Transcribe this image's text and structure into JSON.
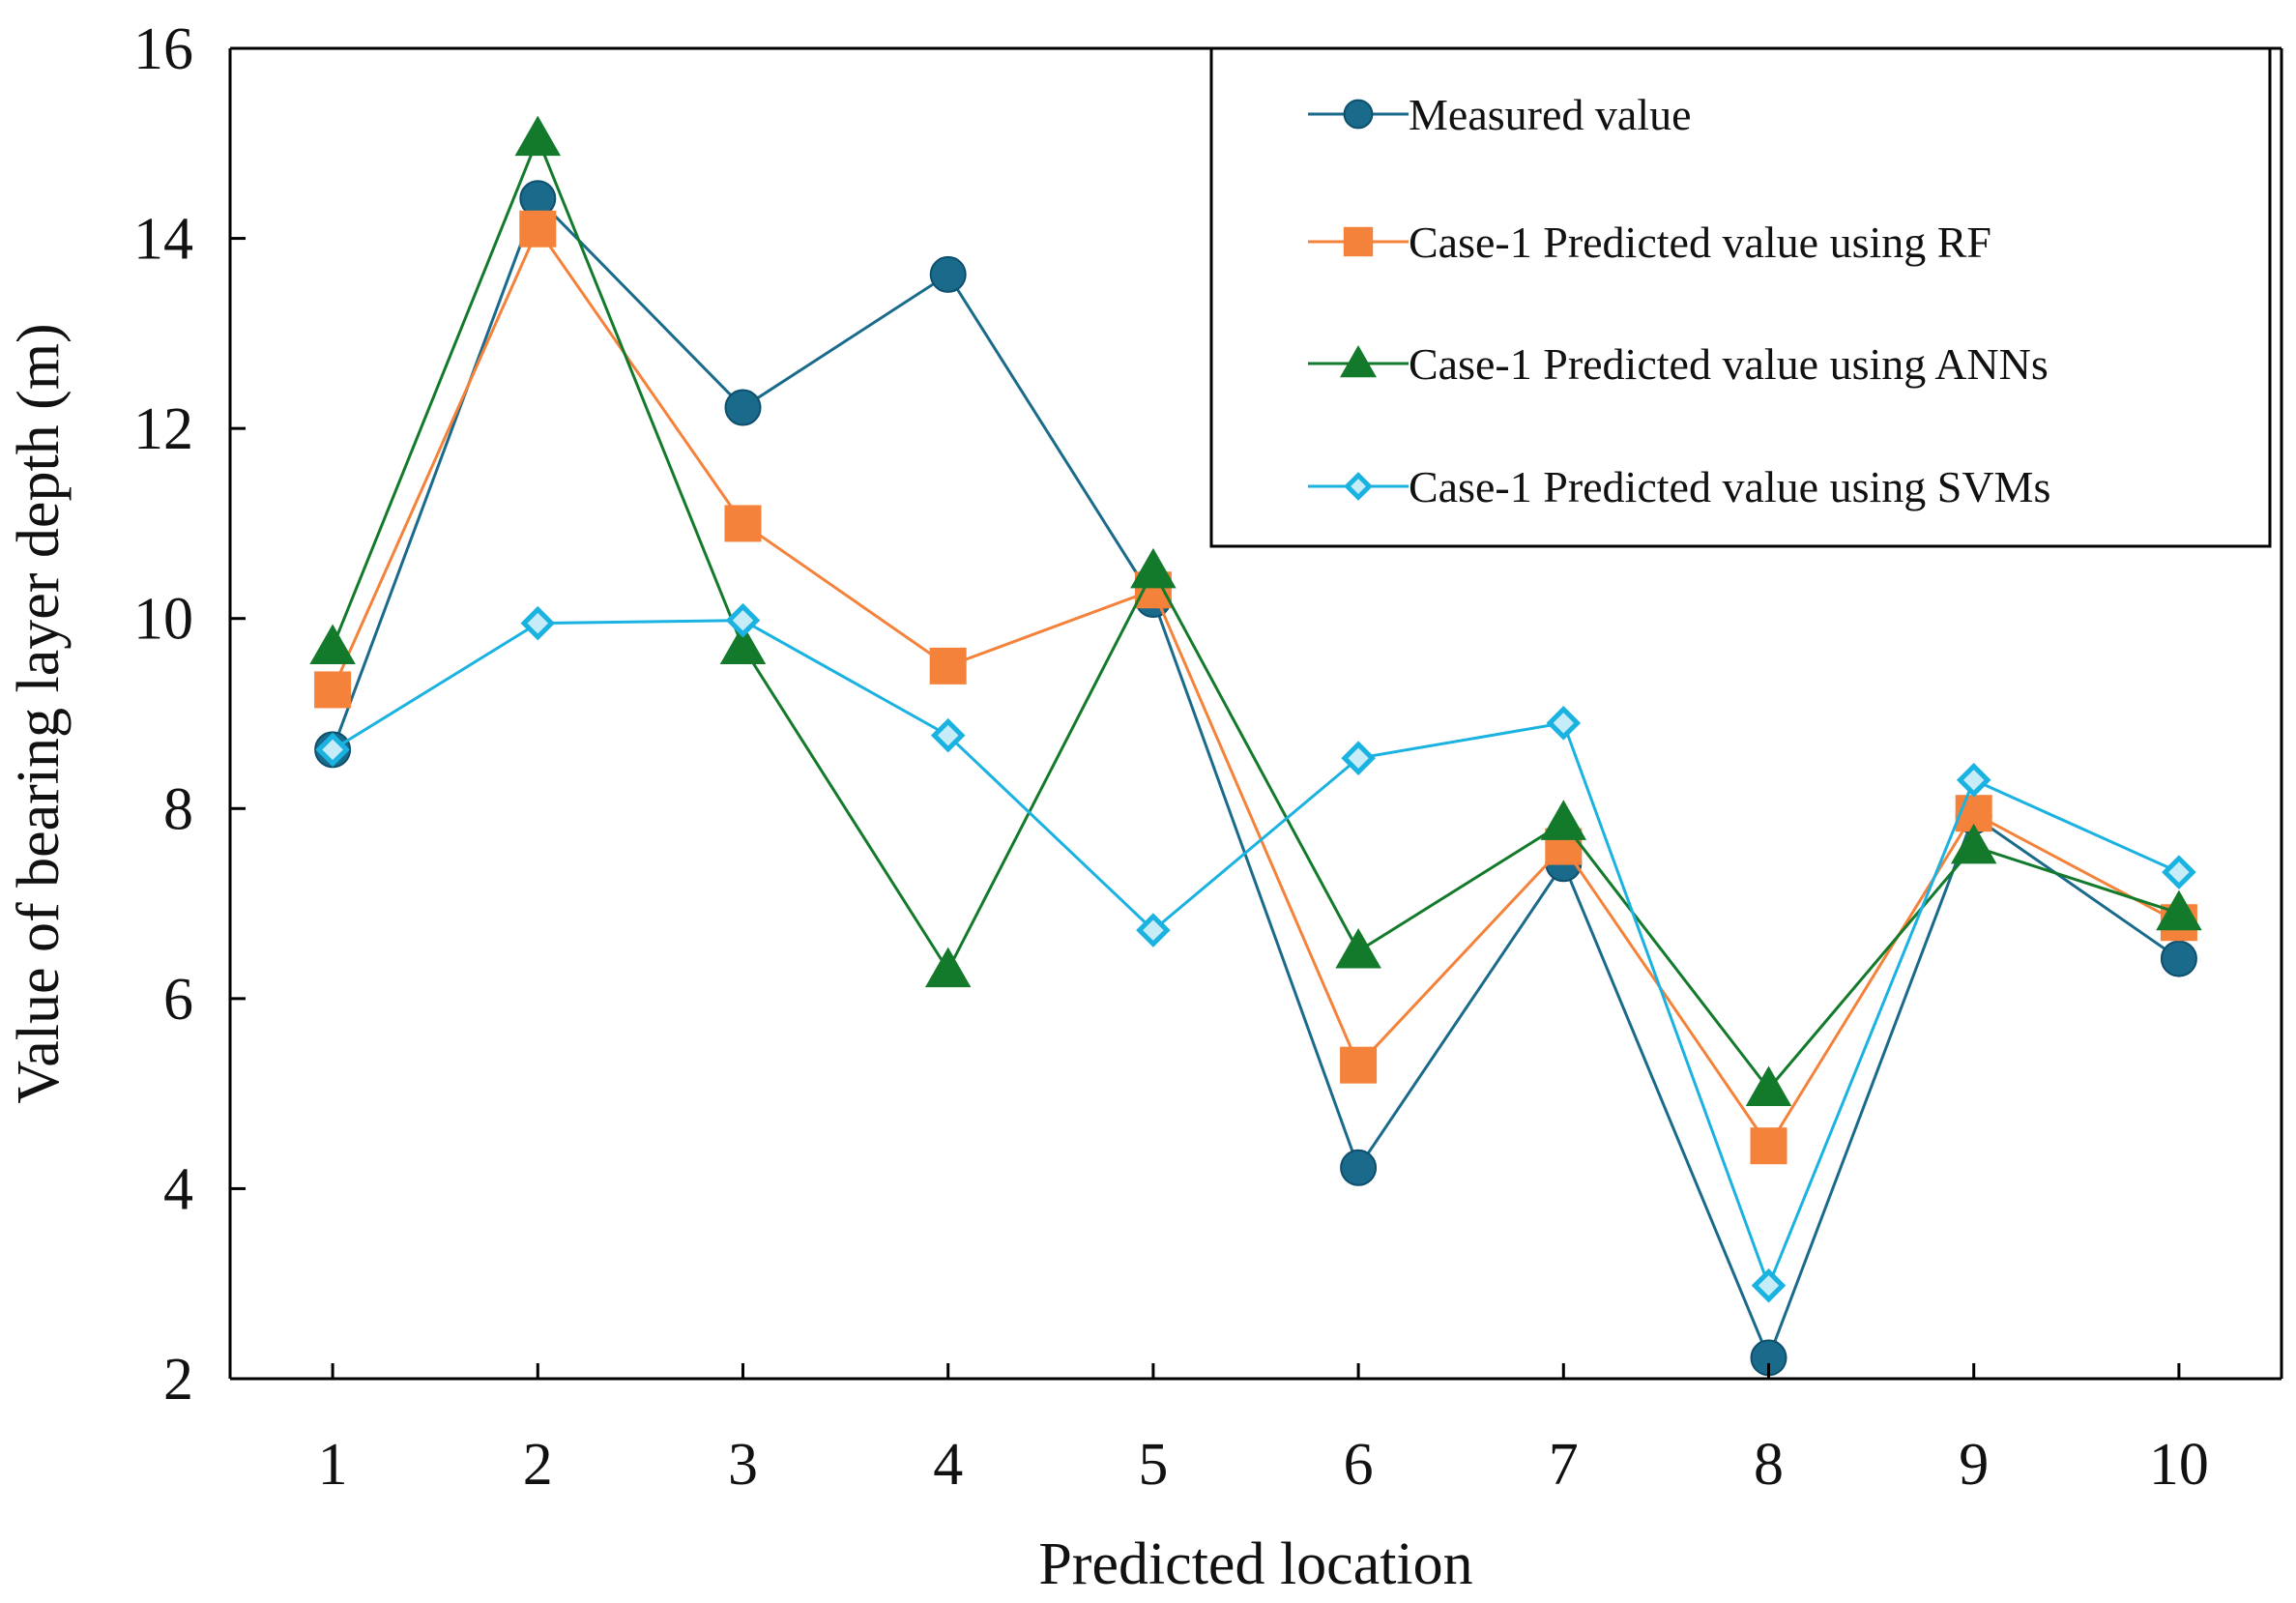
{
  "chart_data": {
    "type": "line",
    "title": "",
    "xlabel": "Predicted location",
    "ylabel": "Value of bearing layer depth (m)",
    "categories": [
      "1",
      "2",
      "3",
      "4",
      "5",
      "6",
      "7",
      "8",
      "9",
      "10"
    ],
    "x": [
      1,
      2,
      3,
      4,
      5,
      6,
      7,
      8,
      9,
      10
    ],
    "xlim": [
      0.5,
      10.5
    ],
    "ylim": [
      2,
      16
    ],
    "yticks": [
      2,
      4,
      6,
      8,
      10,
      12,
      14,
      16
    ],
    "grid": false,
    "legend_position": "top-right",
    "series": [
      {
        "name": "Measured value",
        "marker": "circle",
        "color": "#1a6a8c",
        "values": [
          8.62,
          14.42,
          12.22,
          13.62,
          10.2,
          4.22,
          7.42,
          2.22,
          7.92,
          6.42
        ]
      },
      {
        "name": "Case-1 Predicted value using RF",
        "marker": "square",
        "color": "#f4823a",
        "values": [
          9.25,
          14.1,
          11.0,
          9.5,
          10.3,
          5.3,
          7.6,
          4.45,
          7.95,
          6.8
        ]
      },
      {
        "name": "Case-1 Predicted value using ANNs",
        "marker": "triangle",
        "color": "#137a2b",
        "values": [
          9.7,
          15.05,
          9.7,
          6.3,
          10.5,
          6.5,
          7.85,
          5.05,
          7.6,
          6.9
        ]
      },
      {
        "name": "Case-1 Predicted value using SVMs",
        "marker": "diamond",
        "color": "#1ab2e0",
        "fill": "#c5ecf7",
        "values": [
          8.62,
          9.95,
          9.98,
          8.77,
          6.72,
          8.53,
          8.9,
          2.98,
          8.3,
          7.33
        ]
      }
    ]
  }
}
